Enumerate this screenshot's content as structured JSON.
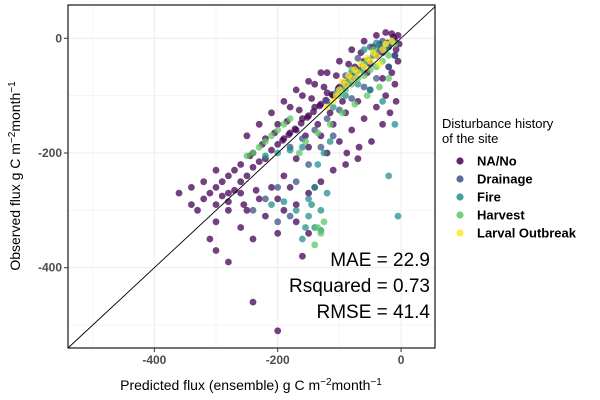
{
  "chart_data": {
    "type": "scatter",
    "xlabel": "Predicted flux (ensemble) g C m",
    "xlabel_sup1": "−2",
    "xlabel_mid": "month",
    "xlabel_sup2": "−1",
    "ylabel": "Observed flux g C m",
    "ylabel_sup1": "−2",
    "ylabel_mid": "month",
    "ylabel_sup2": "−1",
    "xlim": [
      -540,
      55
    ],
    "ylim": [
      -540,
      58
    ],
    "x_ticks": [
      {
        "value": -400,
        "label": "-400"
      },
      {
        "value": -200,
        "label": "-200"
      },
      {
        "value": 0,
        "label": "0"
      }
    ],
    "y_ticks": [
      {
        "value": 0,
        "label": "0"
      },
      {
        "value": -200,
        "label": "-200"
      },
      {
        "value": -400,
        "label": "-400"
      }
    ],
    "grid": true,
    "reference_line": "1:1",
    "legend": {
      "title_line1": "Disturbance history",
      "title_line2": "of the site",
      "placement": "right",
      "entries": [
        {
          "label": "NA/No",
          "color": "#440154"
        },
        {
          "label": "Drainage",
          "color": "#3b528b"
        },
        {
          "label": "Fire",
          "color": "#21908c"
        },
        {
          "label": "Harvest",
          "color": "#5dc863"
        },
        {
          "label": "Larval Outbreak",
          "color": "#fde725"
        }
      ]
    },
    "annotations": {
      "mae": "MAE = 22.9",
      "rsquared": "Rsquared = 0.73",
      "rmse": "RMSE = 41.4"
    },
    "series": [
      {
        "name": "NA/No",
        "color": "#440154",
        "points": [
          [
            -5,
            5
          ],
          [
            -10,
            -5
          ],
          [
            -20,
            -15
          ],
          [
            -15,
            8
          ],
          [
            -30,
            -25
          ],
          [
            -40,
            -30
          ],
          [
            -35,
            -10
          ],
          [
            -50,
            -45
          ],
          [
            -60,
            -40
          ],
          [
            -55,
            -60
          ],
          [
            -70,
            -55
          ],
          [
            -80,
            -70
          ],
          [
            -75,
            -50
          ],
          [
            -90,
            -80
          ],
          [
            -100,
            -85
          ],
          [
            -95,
            -110
          ],
          [
            -110,
            -100
          ],
          [
            -120,
            -95
          ],
          [
            -115,
            -130
          ],
          [
            -130,
            -115
          ],
          [
            -140,
            -120
          ],
          [
            -135,
            -150
          ],
          [
            -150,
            -135
          ],
          [
            -160,
            -140
          ],
          [
            -155,
            -170
          ],
          [
            -170,
            -160
          ],
          [
            -180,
            -165
          ],
          [
            -190,
            -175
          ],
          [
            -200,
            -185
          ],
          [
            -210,
            -195
          ],
          [
            -220,
            -210
          ],
          [
            -230,
            -215
          ],
          [
            -240,
            -225
          ],
          [
            -250,
            -240
          ],
          [
            -260,
            -250
          ],
          [
            -270,
            -265
          ],
          [
            -280,
            -270
          ],
          [
            -290,
            -275
          ],
          [
            -300,
            -290
          ],
          [
            -190,
            -240
          ],
          [
            -170,
            -210
          ],
          [
            -150,
            -190
          ],
          [
            -130,
            -170
          ],
          [
            -110,
            -150
          ],
          [
            -90,
            -130
          ],
          [
            -70,
            -110
          ],
          [
            -50,
            -90
          ],
          [
            -30,
            -70
          ],
          [
            -20,
            -50
          ],
          [
            -10,
            -30
          ],
          [
            -180,
            -120
          ],
          [
            -160,
            -100
          ],
          [
            -140,
            -80
          ],
          [
            -120,
            -60
          ],
          [
            -100,
            -40
          ],
          [
            -80,
            -20
          ],
          [
            -60,
            -5
          ],
          [
            -40,
            5
          ],
          [
            -25,
            10
          ],
          [
            -130,
            -60
          ],
          [
            -150,
            -75
          ],
          [
            -170,
            -90
          ],
          [
            -190,
            -110
          ],
          [
            -210,
            -130
          ],
          [
            -230,
            -150
          ],
          [
            -250,
            -170
          ],
          [
            -200,
            -150
          ],
          [
            -220,
            -175
          ],
          [
            -240,
            -200
          ],
          [
            -260,
            -220
          ],
          [
            -280,
            -240
          ],
          [
            -300,
            -260
          ],
          [
            -320,
            -280
          ],
          [
            -340,
            -290
          ],
          [
            -310,
            -270
          ],
          [
            -290,
            -250
          ],
          [
            -270,
            -230
          ],
          [
            -245,
            -205
          ],
          [
            -225,
            -185
          ],
          [
            -205,
            -165
          ],
          [
            -185,
            -145
          ],
          [
            -165,
            -125
          ],
          [
            -145,
            -105
          ],
          [
            -125,
            -85
          ],
          [
            -105,
            -65
          ],
          [
            -85,
            -45
          ],
          [
            -65,
            -25
          ],
          [
            -45,
            -15
          ],
          [
            -300,
            -320
          ],
          [
            -280,
            -300
          ],
          [
            -260,
            -330
          ],
          [
            -240,
            -350
          ],
          [
            -220,
            -310
          ],
          [
            -200,
            -280
          ],
          [
            -180,
            -260
          ],
          [
            -300,
            -230
          ],
          [
            -320,
            -250
          ],
          [
            -340,
            -260
          ],
          [
            -360,
            -270
          ],
          [
            -330,
            -300
          ],
          [
            -280,
            -390
          ],
          [
            -300,
            -370
          ],
          [
            -310,
            -350
          ],
          [
            -250,
            -300
          ],
          [
            -230,
            -280
          ],
          [
            -210,
            -260
          ],
          [
            -190,
            -300
          ],
          [
            -170,
            -320
          ],
          [
            -150,
            -340
          ],
          [
            -200,
            -340
          ],
          [
            -240,
            -460
          ],
          [
            -200,
            -510
          ],
          [
            -160,
            -380
          ],
          [
            -140,
            -260
          ],
          [
            -120,
            -200
          ],
          [
            -100,
            -180
          ],
          [
            -80,
            -160
          ],
          [
            -60,
            -140
          ],
          [
            -40,
            -120
          ],
          [
            -25,
            -100
          ],
          [
            -10,
            -80
          ],
          [
            -15,
            -60
          ],
          [
            -5,
            -40
          ],
          [
            -8,
            -20
          ],
          [
            -3,
            -10
          ],
          [
            -12,
            2
          ],
          [
            -22,
            -8
          ],
          [
            -32,
            -18
          ],
          [
            -42,
            -28
          ],
          [
            -52,
            -38
          ],
          [
            -62,
            -48
          ],
          [
            -72,
            -58
          ],
          [
            -82,
            -68
          ],
          [
            -92,
            -78
          ],
          [
            -102,
            -88
          ],
          [
            -112,
            -98
          ],
          [
            -122,
            -108
          ],
          [
            -132,
            -118
          ],
          [
            -142,
            -128
          ],
          [
            -152,
            -138
          ],
          [
            -162,
            -148
          ],
          [
            -172,
            -158
          ],
          [
            -182,
            -168
          ],
          [
            -192,
            -178
          ],
          [
            -88,
            -200
          ],
          [
            -68,
            -190
          ],
          [
            -48,
            -180
          ],
          [
            -30,
            -150
          ],
          [
            -18,
            -130
          ],
          [
            -8,
            -110
          ],
          [
            -110,
            -230
          ],
          [
            -90,
            -220
          ],
          [
            -70,
            -210
          ],
          [
            -130,
            -250
          ],
          [
            -150,
            -270
          ],
          [
            -170,
            -290
          ],
          [
            -260,
            -270
          ],
          [
            -280,
            -285
          ],
          [
            -255,
            -290
          ],
          [
            -235,
            -265
          ]
        ]
      },
      {
        "name": "Drainage",
        "color": "#3b528b",
        "points": [
          [
            -20,
            -10
          ],
          [
            -40,
            -25
          ],
          [
            -60,
            -45
          ],
          [
            -80,
            -60
          ],
          [
            -100,
            -90
          ],
          [
            -120,
            -110
          ],
          [
            -50,
            -15
          ],
          [
            -30,
            -5
          ],
          [
            -70,
            -35
          ],
          [
            -90,
            -65
          ],
          [
            -150,
            -220
          ],
          [
            -170,
            -250
          ],
          [
            -130,
            -190
          ],
          [
            -110,
            -170
          ],
          [
            -200,
            -260
          ],
          [
            -220,
            -280
          ],
          [
            -240,
            -300
          ],
          [
            -180,
            -190
          ],
          [
            -160,
            -175
          ],
          [
            -140,
            -160
          ],
          [
            -120,
            -140
          ],
          [
            -100,
            -125
          ],
          [
            -80,
            -105
          ],
          [
            -60,
            -85
          ],
          [
            -40,
            -70
          ],
          [
            -20,
            -50
          ],
          [
            -10,
            -30
          ],
          [
            -200,
            -320
          ],
          [
            -180,
            -310
          ]
        ]
      },
      {
        "name": "Fire",
        "color": "#21908c",
        "points": [
          [
            -15,
            -5
          ],
          [
            -25,
            -20
          ],
          [
            -35,
            -15
          ],
          [
            -45,
            -30
          ],
          [
            -55,
            -40
          ],
          [
            -65,
            -55
          ],
          [
            -75,
            -60
          ],
          [
            -85,
            -75
          ],
          [
            -95,
            -85
          ],
          [
            -105,
            -95
          ],
          [
            -115,
            -180
          ],
          [
            -125,
            -200
          ],
          [
            -135,
            -220
          ],
          [
            -140,
            -260
          ],
          [
            -145,
            -290
          ],
          [
            -150,
            -310
          ],
          [
            -155,
            -330
          ],
          [
            -160,
            -350
          ],
          [
            -130,
            -300
          ],
          [
            -120,
            -270
          ],
          [
            -200,
            -200
          ],
          [
            -220,
            -205
          ],
          [
            -180,
            -195
          ],
          [
            -160,
            -190
          ],
          [
            -20,
            -240
          ],
          [
            -5,
            -310
          ],
          [
            -10,
            -150
          ],
          [
            -30,
            -110
          ],
          [
            -50,
            -90
          ],
          [
            -70,
            -80
          ],
          [
            -90,
            -100
          ],
          [
            -110,
            -120
          ],
          [
            -60,
            -20
          ],
          [
            -40,
            -8
          ],
          [
            -140,
            -330
          ],
          [
            -130,
            -335
          ],
          [
            -150,
            -280
          ],
          [
            -170,
            -300
          ],
          [
            -190,
            -285
          ],
          [
            -210,
            -290
          ]
        ]
      },
      {
        "name": "Harvest",
        "color": "#5dc863",
        "points": [
          [
            -10,
            -10
          ],
          [
            -20,
            -30
          ],
          [
            -30,
            -40
          ],
          [
            -40,
            -50
          ],
          [
            -50,
            -55
          ],
          [
            -60,
            -65
          ],
          [
            -70,
            -70
          ],
          [
            -80,
            -80
          ],
          [
            -90,
            -90
          ],
          [
            -100,
            -100
          ],
          [
            -180,
            -140
          ],
          [
            -190,
            -150
          ],
          [
            -200,
            -160
          ],
          [
            -210,
            -170
          ],
          [
            -220,
            -180
          ],
          [
            -230,
            -190
          ],
          [
            -240,
            -200
          ],
          [
            -250,
            -205
          ],
          [
            -125,
            -320
          ],
          [
            -130,
            -340
          ],
          [
            -140,
            -360
          ],
          [
            -135,
            -330
          ],
          [
            -20,
            -70
          ],
          [
            -35,
            -85
          ],
          [
            -55,
            -100
          ],
          [
            -75,
            -115
          ],
          [
            -95,
            -130
          ],
          [
            -115,
            -150
          ],
          [
            -135,
            -165
          ],
          [
            -60,
            -45
          ],
          [
            -80,
            -55
          ],
          [
            -45,
            -20
          ],
          [
            -25,
            -10
          ],
          [
            -155,
            -180
          ],
          [
            -165,
            -200
          ]
        ]
      },
      {
        "name": "Larval Outbreak",
        "color": "#fde725",
        "points": [
          [
            -30,
            -20
          ],
          [
            -40,
            -30
          ],
          [
            -50,
            -40
          ],
          [
            -60,
            -50
          ],
          [
            -70,
            -60
          ],
          [
            -80,
            -70
          ],
          [
            -90,
            -80
          ],
          [
            -100,
            -90
          ],
          [
            -45,
            -25
          ],
          [
            -55,
            -35
          ],
          [
            -65,
            -45
          ],
          [
            -75,
            -55
          ],
          [
            -85,
            -65
          ],
          [
            -95,
            -75
          ],
          [
            -35,
            -45
          ],
          [
            -25,
            -10
          ],
          [
            -15,
            -5
          ],
          [
            -105,
            -100
          ],
          [
            -110,
            -110
          ],
          [
            -120,
            -120
          ]
        ]
      }
    ]
  }
}
